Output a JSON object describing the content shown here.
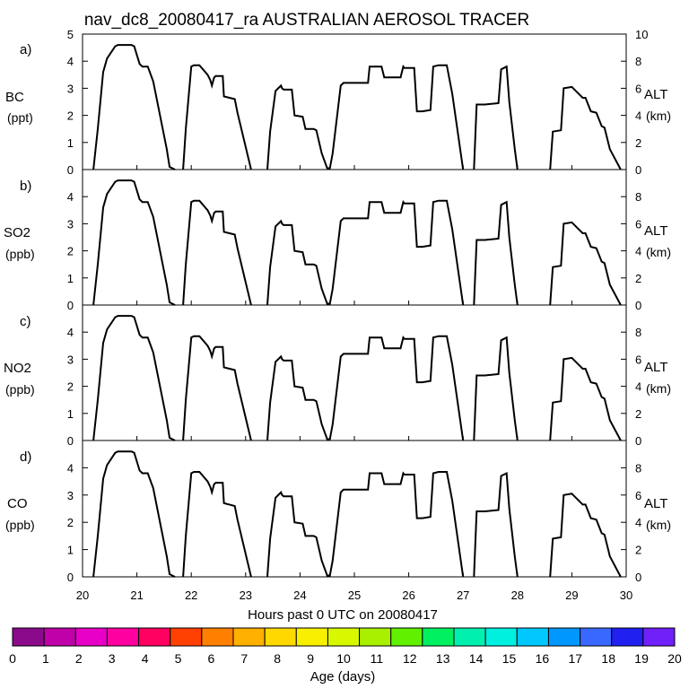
{
  "title": "nav_dc8_20080417_ra AUSTRALIAN AEROSOL TRACER",
  "xlabel": "Hours past 0 UTC on 20080417",
  "x_ticks": [
    "20",
    "21",
    "22",
    "23",
    "24",
    "25",
    "26",
    "27",
    "28",
    "29",
    "30"
  ],
  "right_axis": {
    "label": "ALT",
    "unit": "(km)",
    "ticks": [
      "0",
      "2",
      "4",
      "6",
      "8",
      "10"
    ]
  },
  "panels": [
    {
      "letter": "a)",
      "species": "BC",
      "unit": "(ppt)",
      "left_ticks": [
        "0",
        "1",
        "2",
        "3",
        "4",
        "5"
      ]
    },
    {
      "letter": "b)",
      "species": "SO2",
      "unit": "(ppb)",
      "left_ticks": [
        "0",
        "1",
        "2",
        "3",
        "4"
      ]
    },
    {
      "letter": "c)",
      "species": "NO2",
      "unit": "(ppb)",
      "left_ticks": [
        "0",
        "1",
        "2",
        "3",
        "4"
      ]
    },
    {
      "letter": "d)",
      "species": "CO",
      "unit": "(ppb)",
      "left_ticks": [
        "0",
        "1",
        "2",
        "3",
        "4"
      ]
    }
  ],
  "colorbar": {
    "label": "Age (days)",
    "ticks": [
      "0",
      "1",
      "2",
      "3",
      "4",
      "5",
      "6",
      "7",
      "8",
      "9",
      "10",
      "11",
      "12",
      "13",
      "14",
      "15",
      "16",
      "17",
      "18",
      "19",
      "20"
    ],
    "colors": [
      "#8B0A8B",
      "#C000A8",
      "#E800C8",
      "#FF00A0",
      "#FF0060",
      "#FF4000",
      "#FF8000",
      "#FFB000",
      "#FFD800",
      "#F8F000",
      "#D8F800",
      "#A8F000",
      "#60F000",
      "#00F060",
      "#00F0B0",
      "#00F0E0",
      "#00C8FF",
      "#0098FF",
      "#3868FF",
      "#2020F0",
      "#7020F8"
    ]
  },
  "chart_data": {
    "type": "line",
    "title": "nav_dc8_20080417_ra AUSTRALIAN AEROSOL TRACER",
    "xlabel": "Hours past 0 UTC on 20080417",
    "ylabel": "ALT (km)",
    "xlim": [
      20,
      30
    ],
    "ylim": [
      0,
      10
    ],
    "grid": false,
    "series": [
      {
        "name": "ALT",
        "x": [
          20.0,
          20.2,
          20.28,
          20.38,
          20.45,
          20.6,
          20.65,
          20.9,
          20.95,
          21.05,
          21.1,
          21.2,
          21.3,
          21.55,
          21.6,
          21.7,
          21.8,
          21.85,
          21.9,
          22.0,
          22.05,
          22.15,
          22.3,
          22.35,
          22.38,
          22.42,
          22.45,
          22.5,
          22.58,
          22.6,
          22.8,
          22.85,
          23.1,
          23.15,
          23.4,
          23.45,
          23.55,
          23.65,
          23.67,
          23.7,
          23.85,
          23.9,
          24.05,
          24.1,
          24.25,
          24.3,
          24.4,
          24.5,
          24.55,
          24.6,
          24.75,
          24.8,
          24.95,
          25.25,
          25.28,
          25.5,
          25.55,
          25.85,
          25.9,
          25.92,
          26.1,
          26.15,
          26.25,
          26.4,
          26.45,
          26.55,
          26.7,
          26.8,
          27.0,
          27.05,
          27.2,
          27.25,
          27.4,
          27.65,
          27.7,
          27.8,
          27.85,
          27.95,
          28.0,
          28.1,
          28.6,
          28.65,
          28.8,
          28.85,
          29.0,
          29.2,
          29.25,
          29.35,
          29.45,
          29.55,
          29.6,
          29.7,
          29.9,
          30.0
        ],
        "y": [
          null,
          0,
          3,
          7.2,
          8.2,
          9.1,
          9.2,
          9.2,
          9.1,
          7.8,
          7.6,
          7.6,
          6.5,
          1.5,
          0.2,
          0,
          null,
          0,
          3,
          7.6,
          7.7,
          7.7,
          7.0,
          6.6,
          6.2,
          6.8,
          6.9,
          6.9,
          6.9,
          5.4,
          5.2,
          4.2,
          0,
          null,
          0,
          2.8,
          5.8,
          6.2,
          6.0,
          5.9,
          5.9,
          4.0,
          3.9,
          3.0,
          3.0,
          2.9,
          1.2,
          0.1,
          0.1,
          1.2,
          6.2,
          6.4,
          6.4,
          6.4,
          7.6,
          7.6,
          6.8,
          6.8,
          7.6,
          7.5,
          7.5,
          4.3,
          4.3,
          4.4,
          7.6,
          7.7,
          7.7,
          5.6,
          0,
          null,
          0,
          4.8,
          4.8,
          4.9,
          7.4,
          7.6,
          5.0,
          1.5,
          0,
          null,
          0,
          2.8,
          2.9,
          6.0,
          6.1,
          5.3,
          5.3,
          4.3,
          4.2,
          3.2,
          3.1,
          1.5,
          0,
          null
        ]
      }
    ]
  }
}
